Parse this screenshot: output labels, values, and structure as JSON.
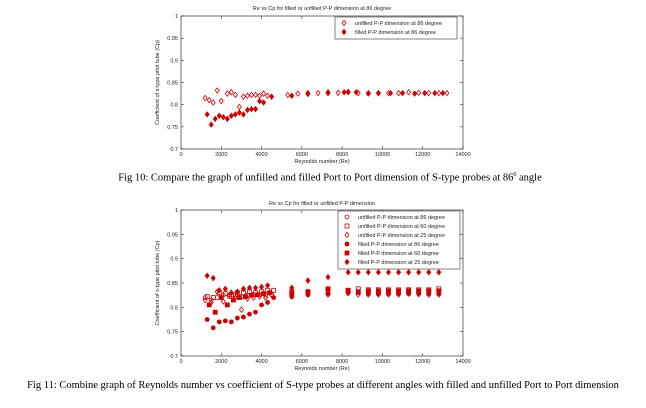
{
  "colors": {
    "series": "#cc0000",
    "axis": "#333333"
  },
  "captions": {
    "fig10_main": "Fig 10: Compare the graph of unfilled and filled Port to Port dimension of S-type probes at 86",
    "fig10_sup": "0",
    "fig10_tail": " angle",
    "fig11": "Fig 11: Combine graph of Reynolds number vs coefficient of S-type probes at different angles with filled and unfilled Port to Port dimension"
  },
  "chart_data": [
    {
      "type": "scatter",
      "title": "Re vs Cp for filled or unfilled P-P dimension at 86 degree",
      "xlabel": "Reynolds number (Re)",
      "ylabel": "Coefficient of s-type pitot tube (Cp)",
      "xlim": [
        0,
        14000
      ],
      "ylim": [
        0.7,
        1.0
      ],
      "xticks": [
        "0",
        "2000",
        "4000",
        "6000",
        "8000",
        "10000",
        "12000",
        "14000"
      ],
      "yticks": [
        "0.7",
        "0.75",
        "0.8",
        "0.85",
        "0.9",
        "0.95",
        "1"
      ],
      "legend_position": "top-right",
      "series": [
        {
          "name": "unfilled P-P dimension at 86 degree",
          "marker": "diamond-open",
          "points": [
            [
              1200,
              0.815
            ],
            [
              1400,
              0.81
            ],
            [
              1600,
              0.805
            ],
            [
              1800,
              0.832
            ],
            [
              2000,
              0.808
            ],
            [
              2300,
              0.825
            ],
            [
              2500,
              0.828
            ],
            [
              2700,
              0.822
            ],
            [
              2900,
              0.795
            ],
            [
              3100,
              0.818
            ],
            [
              3300,
              0.82
            ],
            [
              3500,
              0.822
            ],
            [
              3700,
              0.822
            ],
            [
              3900,
              0.82
            ],
            [
              4100,
              0.825
            ],
            [
              4300,
              0.82
            ],
            [
              5300,
              0.822
            ],
            [
              5800,
              0.825
            ],
            [
              6300,
              0.826
            ],
            [
              6800,
              0.826
            ],
            [
              7300,
              0.828
            ],
            [
              7800,
              0.827
            ],
            [
              8300,
              0.829
            ],
            [
              8800,
              0.826
            ],
            [
              9300,
              0.826
            ],
            [
              9800,
              0.826
            ],
            [
              10300,
              0.826
            ],
            [
              10800,
              0.826
            ],
            [
              11300,
              0.828
            ],
            [
              11800,
              0.827
            ],
            [
              12300,
              0.826
            ],
            [
              12800,
              0.826
            ],
            [
              13200,
              0.826
            ]
          ]
        },
        {
          "name": "filled P-P dimension at 86 degree",
          "marker": "diamond-filled",
          "points": [
            [
              1300,
              0.778
            ],
            [
              1500,
              0.755
            ],
            [
              1700,
              0.768
            ],
            [
              1900,
              0.775
            ],
            [
              2100,
              0.772
            ],
            [
              2300,
              0.768
            ],
            [
              2500,
              0.775
            ],
            [
              2700,
              0.778
            ],
            [
              2900,
              0.782
            ],
            [
              3100,
              0.778
            ],
            [
              3300,
              0.788
            ],
            [
              3500,
              0.79
            ],
            [
              3700,
              0.79
            ],
            [
              3900,
              0.808
            ],
            [
              4100,
              0.805
            ],
            [
              4500,
              0.818
            ],
            [
              5500,
              0.82
            ],
            [
              6300,
              0.824
            ],
            [
              7300,
              0.826
            ],
            [
              8100,
              0.828
            ],
            [
              8300,
              0.828
            ],
            [
              8700,
              0.828
            ],
            [
              9300,
              0.825
            ],
            [
              9800,
              0.826
            ],
            [
              10400,
              0.826
            ],
            [
              11000,
              0.826
            ],
            [
              11600,
              0.825
            ],
            [
              12100,
              0.826
            ],
            [
              12600,
              0.826
            ],
            [
              13000,
              0.826
            ]
          ]
        }
      ]
    },
    {
      "type": "scatter",
      "title": "Re vs Cp for filled or unfilled P-P dimension",
      "xlabel": "Reynolds number (Re)",
      "ylabel": "Coefficient of s-type pitot tube (Cp)",
      "xlim": [
        0,
        14000
      ],
      "ylim": [
        0.7,
        1.0
      ],
      "xticks": [
        "0",
        "2000",
        "4000",
        "6000",
        "8000",
        "10000",
        "12000",
        "14000"
      ],
      "yticks": [
        "0.7",
        "0.75",
        "0.8",
        "0.85",
        "0.9",
        "0.95",
        "1"
      ],
      "legend_position": "top-right",
      "series": [
        {
          "name": "unfilled P-P dimension at 86 degree",
          "marker": "circle-open",
          "points": [
            [
              1200,
              0.82
            ],
            [
              1500,
              0.815
            ],
            [
              1800,
              0.82
            ],
            [
              2100,
              0.825
            ],
            [
              2400,
              0.822
            ],
            [
              2700,
              0.825
            ],
            [
              3000,
              0.822
            ],
            [
              3300,
              0.825
            ],
            [
              3600,
              0.826
            ],
            [
              3900,
              0.826
            ],
            [
              4200,
              0.825
            ],
            [
              4500,
              0.826
            ],
            [
              5500,
              0.825
            ],
            [
              6300,
              0.826
            ],
            [
              7300,
              0.828
            ],
            [
              8300,
              0.83
            ],
            [
              8800,
              0.83
            ],
            [
              9300,
              0.828
            ],
            [
              9800,
              0.828
            ],
            [
              10300,
              0.83
            ],
            [
              10800,
              0.828
            ],
            [
              11300,
              0.83
            ],
            [
              11800,
              0.83
            ],
            [
              12300,
              0.83
            ],
            [
              12800,
              0.83
            ]
          ]
        },
        {
          "name": "unfilled P-P dimension at 60 degree",
          "marker": "square-open",
          "points": [
            [
              1300,
              0.822
            ],
            [
              1600,
              0.82
            ],
            [
              1900,
              0.83
            ],
            [
              2200,
              0.828
            ],
            [
              2500,
              0.826
            ],
            [
              2800,
              0.83
            ],
            [
              3100,
              0.83
            ],
            [
              3400,
              0.832
            ],
            [
              3700,
              0.83
            ],
            [
              4000,
              0.832
            ],
            [
              4300,
              0.835
            ],
            [
              4600,
              0.835
            ],
            [
              5500,
              0.832
            ],
            [
              6300,
              0.832
            ],
            [
              7300,
              0.835
            ],
            [
              8300,
              0.835
            ],
            [
              8800,
              0.838
            ],
            [
              9300,
              0.836
            ],
            [
              9800,
              0.836
            ],
            [
              10300,
              0.836
            ],
            [
              10800,
              0.836
            ],
            [
              11300,
              0.836
            ],
            [
              11800,
              0.836
            ],
            [
              12300,
              0.836
            ],
            [
              12800,
              0.838
            ]
          ]
        },
        {
          "name": "unfilled P-P dimension at 25 degree",
          "marker": "diamond-open",
          "points": [
            [
              1200,
              0.815
            ],
            [
              1500,
              0.81
            ],
            [
              1800,
              0.832
            ],
            [
              2100,
              0.812
            ],
            [
              2400,
              0.825
            ],
            [
              2700,
              0.82
            ],
            [
              3000,
              0.795
            ],
            [
              3300,
              0.818
            ],
            [
              3600,
              0.82
            ],
            [
              3900,
              0.822
            ],
            [
              4200,
              0.82
            ],
            [
              4500,
              0.825
            ],
            [
              5500,
              0.822
            ],
            [
              6300,
              0.826
            ],
            [
              7300,
              0.826
            ],
            [
              8300,
              0.829
            ],
            [
              8800,
              0.826
            ],
            [
              9300,
              0.826
            ],
            [
              9800,
              0.826
            ],
            [
              10300,
              0.826
            ],
            [
              10800,
              0.826
            ],
            [
              11300,
              0.828
            ],
            [
              11800,
              0.827
            ],
            [
              12300,
              0.826
            ],
            [
              12800,
              0.826
            ]
          ]
        },
        {
          "name": "filled P-P dimension at 86 degree",
          "marker": "circle-filled",
          "points": [
            [
              1300,
              0.775
            ],
            [
              1600,
              0.758
            ],
            [
              1900,
              0.77
            ],
            [
              2200,
              0.772
            ],
            [
              2500,
              0.77
            ],
            [
              2800,
              0.778
            ],
            [
              3100,
              0.78
            ],
            [
              3400,
              0.786
            ],
            [
              3700,
              0.79
            ],
            [
              4000,
              0.805
            ],
            [
              4300,
              0.81
            ],
            [
              4600,
              0.82
            ],
            [
              5500,
              0.822
            ],
            [
              6300,
              0.826
            ],
            [
              7300,
              0.828
            ],
            [
              8300,
              0.83
            ],
            [
              8800,
              0.83
            ],
            [
              9300,
              0.828
            ],
            [
              9800,
              0.828
            ],
            [
              10300,
              0.828
            ],
            [
              10800,
              0.828
            ],
            [
              11300,
              0.828
            ],
            [
              11800,
              0.828
            ],
            [
              12300,
              0.828
            ],
            [
              12800,
              0.828
            ]
          ]
        },
        {
          "name": "filled P-P dimension at 60 degree",
          "marker": "square-filled",
          "points": [
            [
              1400,
              0.805
            ],
            [
              1700,
              0.79
            ],
            [
              2000,
              0.82
            ],
            [
              2300,
              0.805
            ],
            [
              2600,
              0.815
            ],
            [
              2900,
              0.82
            ],
            [
              3200,
              0.822
            ],
            [
              3500,
              0.825
            ],
            [
              3800,
              0.826
            ],
            [
              4100,
              0.828
            ],
            [
              4400,
              0.83
            ],
            [
              5500,
              0.83
            ],
            [
              6300,
              0.832
            ],
            [
              7300,
              0.838
            ],
            [
              8300,
              0.835
            ],
            [
              8800,
              0.832
            ],
            [
              9300,
              0.834
            ],
            [
              9800,
              0.834
            ],
            [
              10300,
              0.834
            ],
            [
              10800,
              0.834
            ],
            [
              11300,
              0.834
            ],
            [
              11800,
              0.834
            ],
            [
              12300,
              0.834
            ],
            [
              12800,
              0.834
            ]
          ]
        },
        {
          "name": "filled P-P dimension at 25 degree",
          "marker": "diamond-filled",
          "points": [
            [
              1300,
              0.865
            ],
            [
              1600,
              0.86
            ],
            [
              1900,
              0.835
            ],
            [
              2200,
              0.838
            ],
            [
              2500,
              0.83
            ],
            [
              2800,
              0.832
            ],
            [
              3100,
              0.838
            ],
            [
              3400,
              0.84
            ],
            [
              3700,
              0.84
            ],
            [
              4000,
              0.842
            ],
            [
              4300,
              0.845
            ],
            [
              5500,
              0.84
            ],
            [
              6300,
              0.855
            ],
            [
              7300,
              0.862
            ],
            [
              8300,
              0.872
            ],
            [
              8800,
              0.872
            ],
            [
              9300,
              0.872
            ],
            [
              9800,
              0.872
            ],
            [
              10300,
              0.872
            ],
            [
              10800,
              0.872
            ],
            [
              11300,
              0.872
            ],
            [
              11800,
              0.872
            ],
            [
              12300,
              0.872
            ],
            [
              12800,
              0.872
            ]
          ]
        }
      ]
    }
  ]
}
